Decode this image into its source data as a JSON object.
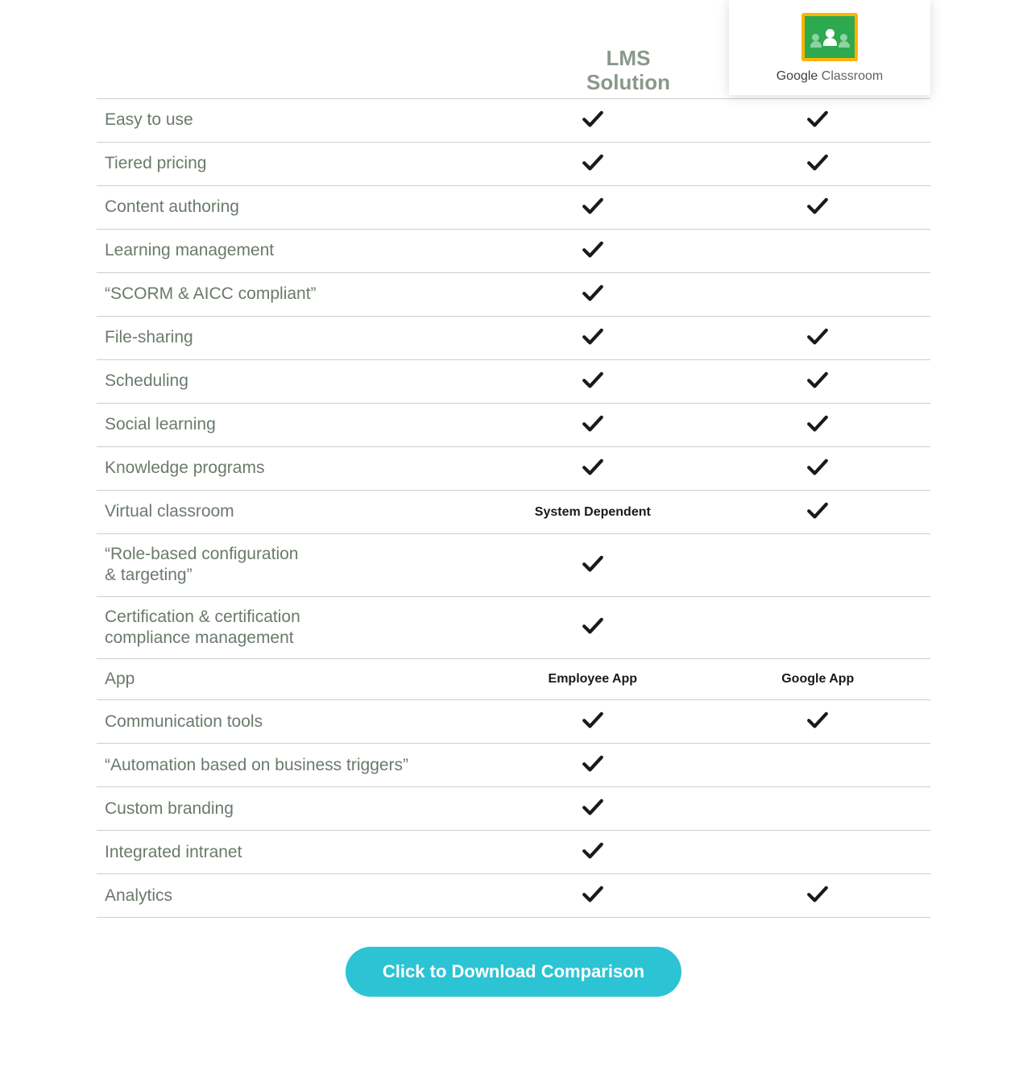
{
  "columns": {
    "lms": "LMS\nSolution",
    "gc": "Google Classroom"
  },
  "features": [
    {
      "label": "Easy to use",
      "lms": "check",
      "gc": "check"
    },
    {
      "label": "Tiered pricing",
      "lms": "check",
      "gc": "check"
    },
    {
      "label": "Content authoring",
      "lms": "check",
      "gc": "check"
    },
    {
      "label": "Learning management",
      "lms": "check",
      "gc": ""
    },
    {
      "label": "“SCORM & AICC compliant”",
      "lms": "check",
      "gc": ""
    },
    {
      "label": "File-sharing",
      "lms": "check",
      "gc": "check"
    },
    {
      "label": "Scheduling",
      "lms": "check",
      "gc": "check"
    },
    {
      "label": "Social learning",
      "lms": "check",
      "gc": "check"
    },
    {
      "label": "Knowledge programs",
      "lms": "check",
      "gc": "check"
    },
    {
      "label": "Virtual classroom",
      "lms": "System Dependent",
      "gc": "check"
    },
    {
      "label": "“Role-based  configuration\n& targeting”",
      "lms": "check",
      "gc": ""
    },
    {
      "label": "Certification & certification\ncompliance management",
      "lms": "check",
      "gc": ""
    },
    {
      "label": "App",
      "lms": "Employee App",
      "gc": "Google App"
    },
    {
      "label": "Communication tools",
      "lms": "check",
      "gc": "check"
    },
    {
      "label": "“Automation based on business triggers”",
      "lms": "check",
      "gc": ""
    },
    {
      "label": "Custom branding",
      "lms": "check",
      "gc": ""
    },
    {
      "label": "Integrated intranet",
      "lms": "check",
      "gc": ""
    },
    {
      "label": "Analytics",
      "lms": "check",
      "gc": "check"
    }
  ],
  "cta": "Click to Download Comparison",
  "style": {
    "type": "comparison-table",
    "colors": {
      "text": "#6b7a6b",
      "header": "#8a988c",
      "border": "#c9d0ca",
      "check": "#1a1a1a",
      "cta_bg": "#2cc4d4",
      "cta_text": "#ffffff",
      "gc_frame": "#ffb400",
      "gc_fill": "#2da94f"
    },
    "column_widths": [
      "46%",
      "27%",
      "27%"
    ],
    "feature_fontsize": 21,
    "cell_text_fontsize": 16,
    "cell_text_weight": 700,
    "header_fontsize": 26,
    "cta_fontsize": 22,
    "cta_radius": 40,
    "check_size": 30
  }
}
